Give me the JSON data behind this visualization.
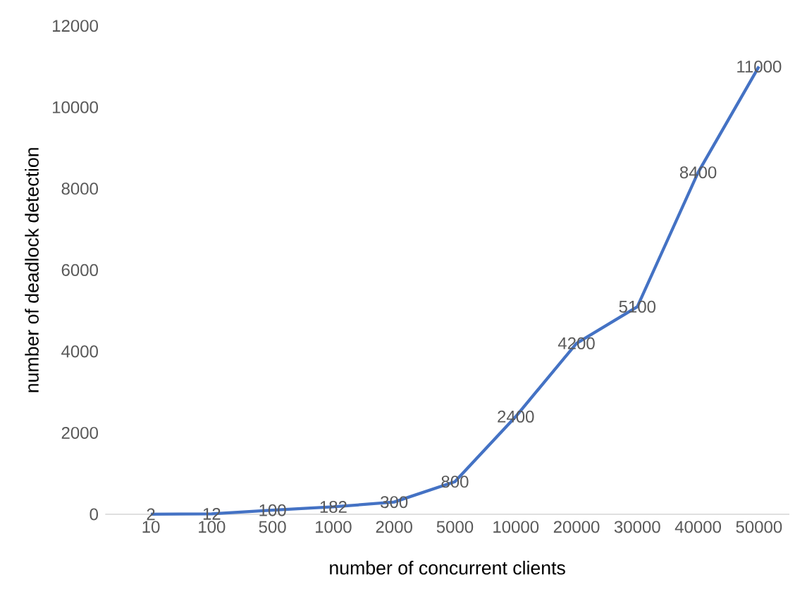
{
  "chart_data": {
    "type": "line",
    "xlabel": "number of concurrent clients",
    "ylabel": "number of deadlock detection",
    "categories": [
      "10",
      "100",
      "500",
      "1000",
      "2000",
      "5000",
      "10000",
      "20000",
      "30000",
      "40000",
      "50000"
    ],
    "values": [
      2,
      12,
      100,
      182,
      300,
      800,
      2400,
      4200,
      5100,
      8400,
      11000
    ],
    "color": "#4472c4",
    "ylim": [
      0,
      12000
    ],
    "yticks": [
      0,
      2000,
      4000,
      6000,
      8000,
      10000,
      12000
    ],
    "data_labels": true,
    "grid": false,
    "marker": "none"
  }
}
